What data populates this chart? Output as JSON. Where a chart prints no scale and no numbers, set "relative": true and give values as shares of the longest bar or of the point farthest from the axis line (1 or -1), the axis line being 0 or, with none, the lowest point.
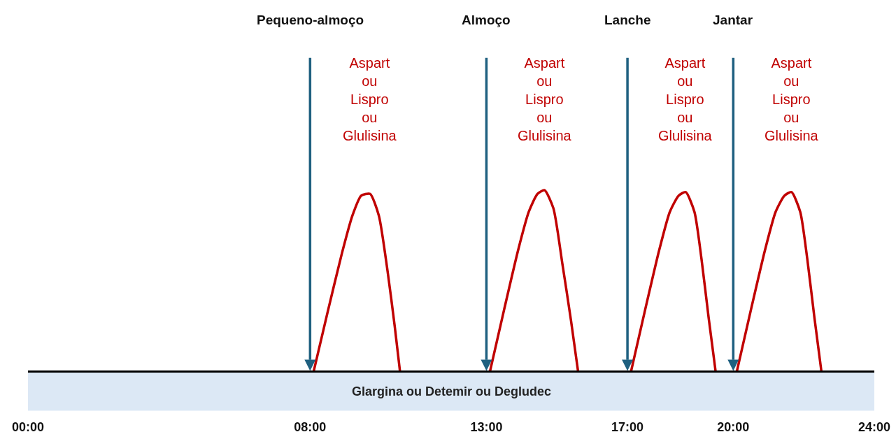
{
  "chart_data": {
    "type": "line",
    "relative": true,
    "xlim": [
      0,
      24
    ],
    "xticks": [
      {
        "value": 0,
        "label": "00:00"
      },
      {
        "value": 8,
        "label": "08:00"
      },
      {
        "value": 13,
        "label": "13:00"
      },
      {
        "value": 17,
        "label": "17:00"
      },
      {
        "value": 20,
        "label": "20:00"
      },
      {
        "value": 24,
        "label": "24:00"
      }
    ],
    "series": [
      {
        "color": "#c00000",
        "x": [
          8.1,
          8.5,
          8.9,
          9.2,
          9.45,
          9.7,
          9.95,
          10.2,
          10.4,
          10.55
        ],
        "values": [
          0,
          0.33,
          0.65,
          0.86,
          0.97,
          0.98,
          0.86,
          0.55,
          0.25,
          0
        ]
      },
      {
        "color": "#c00000",
        "x": [
          13.1,
          13.5,
          13.9,
          14.2,
          14.45,
          14.65,
          14.9,
          15.15,
          15.4,
          15.6
        ],
        "values": [
          0,
          0.34,
          0.67,
          0.88,
          0.98,
          1,
          0.9,
          0.6,
          0.28,
          0
        ]
      },
      {
        "color": "#c00000",
        "x": [
          17.1,
          17.5,
          17.9,
          18.2,
          18.45,
          18.65,
          18.9,
          19.1,
          19.3,
          19.5
        ],
        "values": [
          0,
          0.34,
          0.67,
          0.88,
          0.97,
          0.99,
          0.88,
          0.62,
          0.3,
          0
        ]
      },
      {
        "color": "#c00000",
        "x": [
          20.1,
          20.5,
          20.9,
          21.2,
          21.45,
          21.65,
          21.9,
          22.1,
          22.3,
          22.5
        ],
        "values": [
          0,
          0.34,
          0.67,
          0.88,
          0.97,
          0.99,
          0.88,
          0.62,
          0.3,
          0
        ]
      }
    ],
    "ref_lines": [
      {
        "axis": "x",
        "value": 8,
        "label": "Pequeno-almoço",
        "color": "#1f6080"
      },
      {
        "axis": "x",
        "value": 13,
        "label": "Almoço",
        "color": "#1f6080"
      },
      {
        "axis": "x",
        "value": 17,
        "label": "Lanche",
        "color": "#1f6080"
      },
      {
        "axis": "x",
        "value": 20,
        "label": "Jantar",
        "color": "#1f6080"
      }
    ],
    "bands": [
      {
        "axis": "y",
        "from": -0.215,
        "to": 0,
        "label": "Glargina ou Detemir ou Degludec",
        "color": "#dce8f5"
      }
    ],
    "annotations": [
      "Aspart\nou\nLispro\nou\nGlulisina",
      "Aspart\nou\nLispro\nou\nGlulisina",
      "Aspart\nou\nLispro\nou\nGlulisina",
      "Aspart\nou\nLispro\nou\nGlulisina"
    ],
    "marker": "none",
    "line_style": "solid",
    "grid": false
  }
}
